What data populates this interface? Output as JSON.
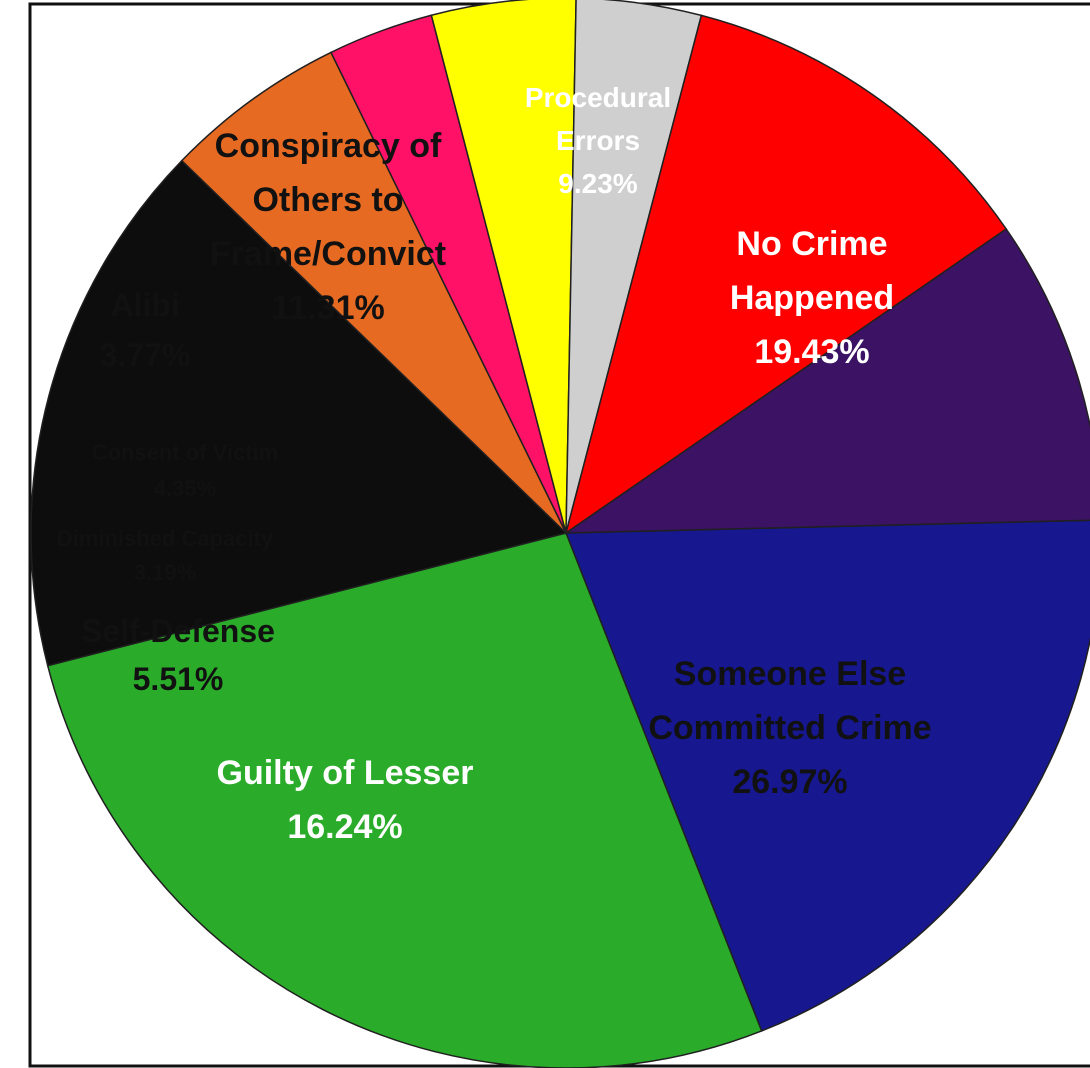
{
  "chart_data": {
    "type": "pie",
    "title": "",
    "slices": [
      {
        "label": "No Crime Happened",
        "lines": [
          "No Crime",
          "Happened",
          "19.43%"
        ],
        "value": 19.43,
        "color": "#17178f",
        "text_color": "#ffffff"
      },
      {
        "label": "Someone Else Committed Crime",
        "lines": [
          "Someone Else",
          "Committed Crime",
          "26.97%"
        ],
        "value": 26.97,
        "color": "#2aac2a",
        "text_color": "#111111"
      },
      {
        "label": "Guilty of Lesser",
        "lines": [
          "Guilty of Lesser",
          "16.24%"
        ],
        "value": 16.24,
        "color": "#0d0d0d",
        "text_color": "#ffffff"
      },
      {
        "label": "Self-Defense",
        "lines": [
          "Self-Defense",
          "5.51%"
        ],
        "value": 5.51,
        "color": "#e76a22",
        "text_color": "#111111"
      },
      {
        "label": "Diminished Capacity",
        "lines": [
          "Diminished Capacity",
          "3.19%"
        ],
        "value": 3.19,
        "color": "#ff1167",
        "text_color": "#111111"
      },
      {
        "label": "Consent of Victim",
        "lines": [
          "Consent of Victim",
          "4.35%"
        ],
        "value": 4.35,
        "color": "#ffff00",
        "text_color": "#111111"
      },
      {
        "label": "Alibi",
        "lines": [
          "Alibi",
          "3.77%"
        ],
        "value": 3.77,
        "color": "#cfcfcf",
        "text_color": "#111111"
      },
      {
        "label": "Conspiracy of Others to Frame/Convict",
        "lines": [
          "Conspiracy of",
          "Others to",
          "Frame/Convict",
          "11.31%"
        ],
        "value": 11.31,
        "color": "#ff0000",
        "text_color": "#111111"
      },
      {
        "label": "Procedural Errors",
        "lines": [
          "Procedural",
          "Errors",
          "9.23%"
        ],
        "value": 9.23,
        "color": "#3b1264",
        "text_color": "#ffffff"
      }
    ]
  }
}
